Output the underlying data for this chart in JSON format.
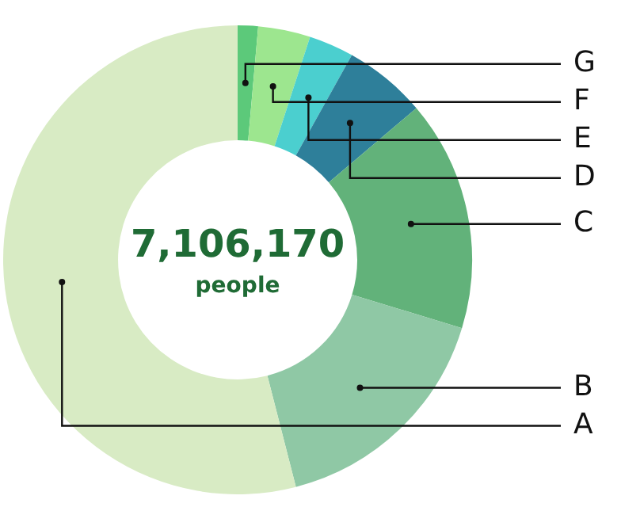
{
  "chart_data": {
    "type": "donut",
    "categories": [
      "G",
      "F",
      "E",
      "D",
      "C",
      "B",
      "A"
    ],
    "values": [
      1.4,
      3.6,
      3.1,
      5.7,
      15.9,
      16.3,
      54.0
    ],
    "colors": [
      "#5cc97a",
      "#9de68f",
      "#4bcfcf",
      "#2e7f9a",
      "#62b27a",
      "#8fc8a5",
      "#d8ebc4"
    ],
    "annotations": [
      "7,106,170",
      "people"
    ],
    "legend": false
  }
}
